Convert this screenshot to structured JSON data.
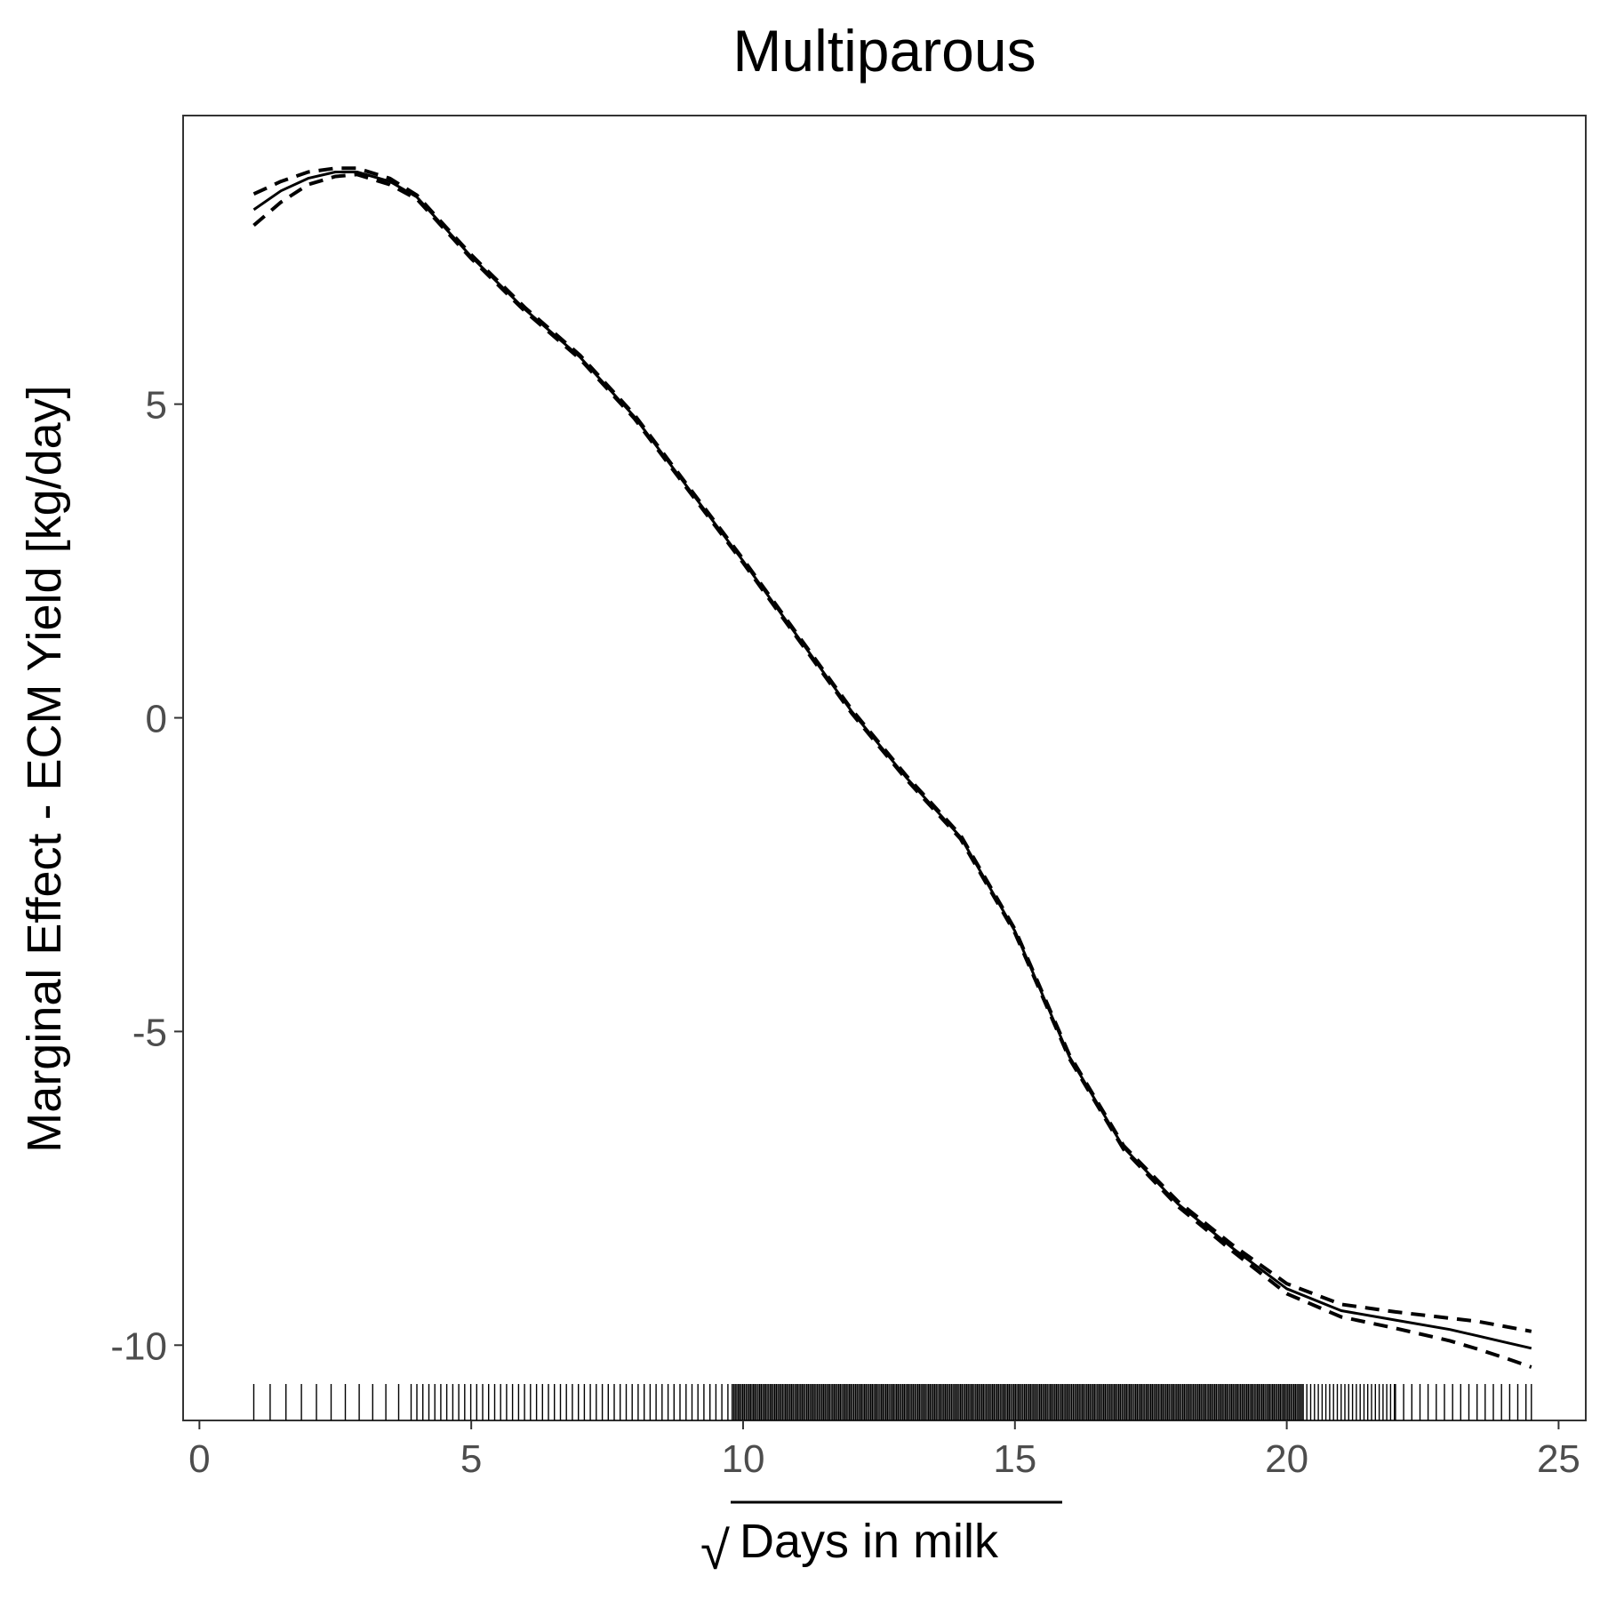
{
  "chart_data": {
    "type": "line",
    "title": "Multiparous",
    "xlabel": "Days in milk",
    "xlabel_radical": "√",
    "ylabel": "Marginal Effect - ECM Yield [kg/day]",
    "xlim": [
      -0.3,
      25.5
    ],
    "ylim": [
      -11.2,
      9.6
    ],
    "x_ticks": [
      0,
      5,
      10,
      15,
      20,
      25
    ],
    "y_ticks": [
      -10,
      -5,
      0,
      5
    ],
    "grid": false,
    "series": [
      {
        "style": "solid",
        "x": [
          1.0,
          1.5,
          2.0,
          2.5,
          2.9,
          3.5,
          4.0,
          5.0,
          6.0,
          7.0,
          8.0,
          9.0,
          10.0,
          11.0,
          12.0,
          13.0,
          14.0,
          15.0,
          16.0,
          17.0,
          18.0,
          19.0,
          20.0,
          21.0,
          22.0,
          23.0,
          23.5,
          24.0,
          24.5
        ],
        "y": [
          8.1,
          8.4,
          8.6,
          8.7,
          8.7,
          8.55,
          8.3,
          7.35,
          6.5,
          5.75,
          4.8,
          3.65,
          2.5,
          1.3,
          0.1,
          -0.95,
          -1.9,
          -3.4,
          -5.4,
          -6.85,
          -7.75,
          -8.45,
          -9.1,
          -9.45,
          -9.6,
          -9.75,
          -9.85,
          -9.95,
          -10.05
        ]
      },
      {
        "style": "dashed",
        "x": [
          1.0,
          1.5,
          2.0,
          2.5,
          2.9,
          3.5,
          4.0,
          5.0,
          6.0,
          7.0,
          8.0,
          9.0,
          10.0,
          11.0,
          12.0,
          13.0,
          14.0,
          15.0,
          16.0,
          17.0,
          18.0,
          19.0,
          20.0,
          21.0,
          22.0,
          23.0,
          23.5,
          24.0,
          24.5
        ],
        "y": [
          8.35,
          8.55,
          8.7,
          8.76,
          8.76,
          8.6,
          8.33,
          7.38,
          6.53,
          5.78,
          4.83,
          3.68,
          2.53,
          1.33,
          0.13,
          -0.92,
          -1.87,
          -3.37,
          -5.37,
          -6.82,
          -7.71,
          -8.4,
          -9.02,
          -9.35,
          -9.47,
          -9.57,
          -9.62,
          -9.7,
          -9.78
        ]
      },
      {
        "style": "dashed",
        "x": [
          1.0,
          1.5,
          2.0,
          2.5,
          2.9,
          3.5,
          4.0,
          5.0,
          6.0,
          7.0,
          8.0,
          9.0,
          10.0,
          11.0,
          12.0,
          13.0,
          14.0,
          15.0,
          16.0,
          17.0,
          18.0,
          19.0,
          20.0,
          21.0,
          22.0,
          23.0,
          23.5,
          24.0,
          24.5
        ],
        "y": [
          7.85,
          8.22,
          8.5,
          8.63,
          8.66,
          8.5,
          8.27,
          7.32,
          6.47,
          5.72,
          4.77,
          3.62,
          2.47,
          1.27,
          0.07,
          -0.98,
          -1.93,
          -3.43,
          -5.43,
          -6.88,
          -7.79,
          -8.5,
          -9.18,
          -9.55,
          -9.73,
          -9.93,
          -10.06,
          -10.2,
          -10.35
        ]
      }
    ],
    "rug": {
      "min": 1.0,
      "max": 24.5,
      "dense_from": 9.8,
      "dense_to": 20.3
    }
  }
}
